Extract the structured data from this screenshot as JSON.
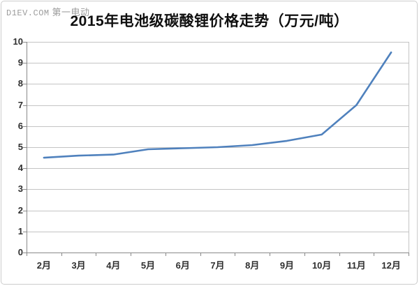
{
  "watermark": {
    "site": "D1EV.COM",
    "brand": "第一电动"
  },
  "chart_data": {
    "type": "line",
    "title": "2015年电池级碳酸锂价格走势（万元/吨）",
    "categories": [
      "2月",
      "3月",
      "4月",
      "5月",
      "6月",
      "7月",
      "8月",
      "9月",
      "10月",
      "11月",
      "12月"
    ],
    "values": [
      4.5,
      4.6,
      4.65,
      4.9,
      4.95,
      5.0,
      5.1,
      5.3,
      5.6,
      7.0,
      9.5
    ],
    "xlabel": "",
    "ylabel": "",
    "ylim": [
      0,
      10
    ],
    "yticks": [
      0,
      1,
      2,
      3,
      4,
      5,
      6,
      7,
      8,
      9,
      10
    ],
    "grid": "horizontal",
    "legend": "none",
    "colors": {
      "line": "#4f81bd",
      "gridline": "#c4c4c4",
      "axis": "#898989",
      "labels": "#2f2f2f",
      "title": "#0f0f0f",
      "watermark": "#9b9b9b",
      "frame_border": "#cccccc"
    }
  }
}
